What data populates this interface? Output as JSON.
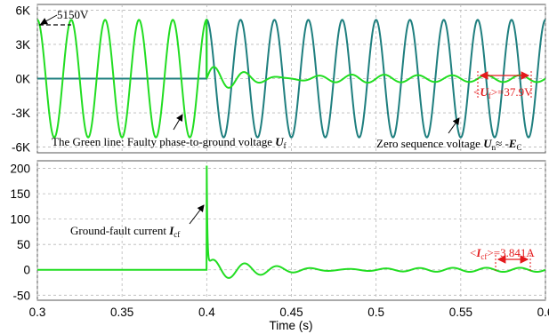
{
  "chart_data": [
    {
      "type": "line",
      "ylim": [
        -6500,
        6500
      ],
      "yticks": [
        6000,
        3000,
        0,
        -3000,
        -6000
      ],
      "ytick_labels": [
        "6K",
        "3K",
        "0K",
        "-3K",
        "-6K"
      ],
      "xlim": [
        0.3,
        0.6
      ],
      "grid": true,
      "series": [
        {
          "color": "#22dd22",
          "description": "faulty phase-to-ground voltage, amplitude 5150 V at 50 Hz until 0.4 s, then decaying oscillation settling to about 37.9 V",
          "amplitude_before_fault": 5150,
          "fault_time": 0.4,
          "steady_state_amplitude": 37.9
        },
        {
          "color": "#1f7f7f",
          "description": "zero sequence voltage, near 0 until 0.4 s, then sinusoid of amplitude about 5150 V",
          "amplitude_after_fault": 5150,
          "fault_time": 0.4
        }
      ],
      "annotations": {
        "peak_label": "5150V",
        "green_line_label": "The Green line:  Faulty phase-to-ground voltage ",
        "green_line_symbol": "U",
        "green_line_sub": "f",
        "zero_seq_label": "Zero sequence voltage ",
        "zero_seq_symbol1": "U",
        "zero_seq_sub1": "n",
        "zero_seq_mid": "≈ -",
        "zero_seq_symbol2": "E",
        "zero_seq_sub2": "C",
        "rms_label_lt": "<",
        "rms_label_symbol": "U",
        "rms_label_sub": "f",
        "rms_label_value": ">=37.9V"
      }
    },
    {
      "type": "line",
      "ylim": [
        -60,
        215
      ],
      "yticks": [
        200,
        150,
        100,
        50,
        0,
        -50
      ],
      "ytick_labels": [
        "200",
        "150",
        "100",
        "50",
        "0",
        "-50"
      ],
      "xlim": [
        0.3,
        0.6
      ],
      "xticks": [
        0.3,
        0.35,
        0.4,
        0.45,
        0.5,
        0.55,
        0.6
      ],
      "xtick_labels": [
        "0.3",
        "0.35",
        "0.4",
        "0.45",
        "0.5",
        "0.55",
        "0.6"
      ],
      "xlabel": "Time (s)",
      "grid": true,
      "series": [
        {
          "color": "#22dd22",
          "description": "ground-fault current, 0 until 0.4 s, spike to about 200 A, then decaying oscillation settling to about 3.841 A",
          "spike_peak": 200,
          "fault_time": 0.4,
          "steady_state_amplitude": 3.841
        }
      ],
      "annotations": {
        "current_label": "Ground-fault current ",
        "current_symbol": "I",
        "current_sub": "cf",
        "rms_label_lt": "<",
        "rms_label_symbol": "I",
        "rms_label_sub": "cf",
        "rms_label_value": ">=3.841A"
      }
    }
  ]
}
